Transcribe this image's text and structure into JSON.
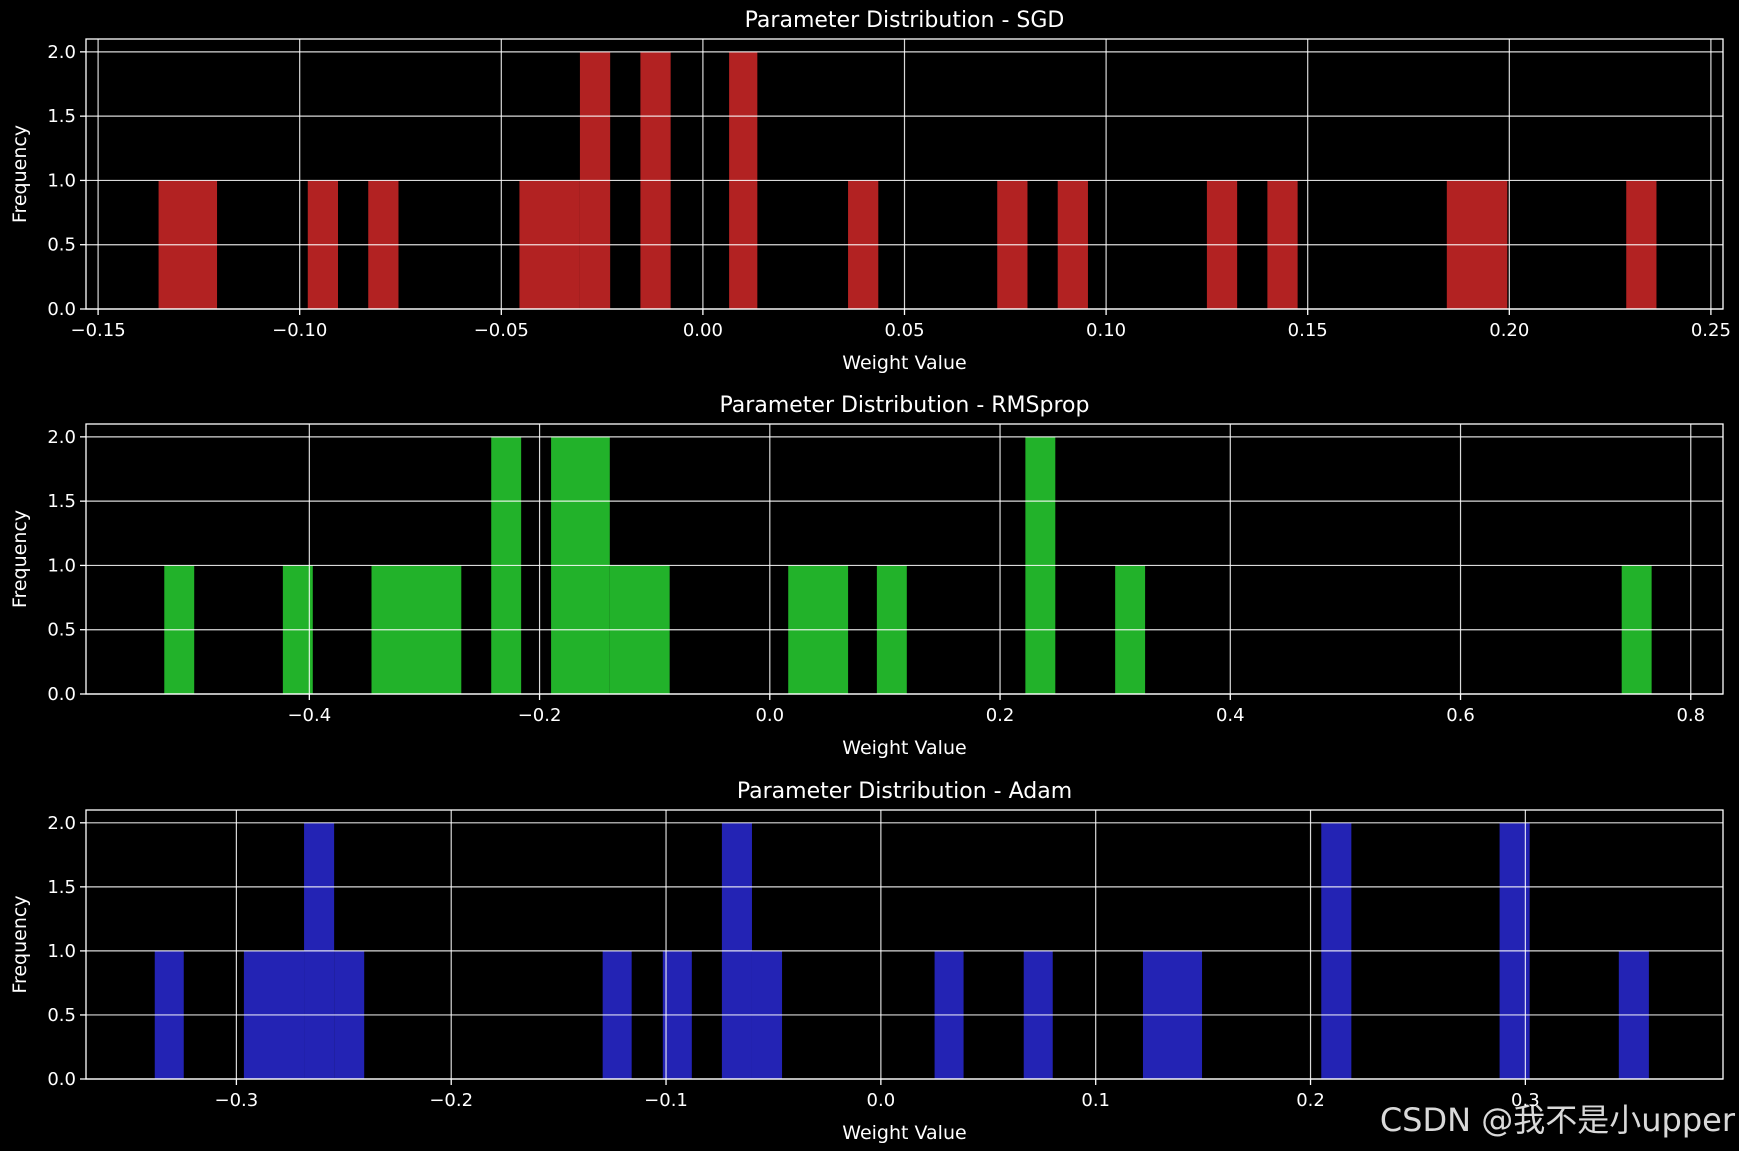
{
  "watermark": "CSDN @我不是小upper",
  "chart_data": [
    {
      "type": "bar",
      "title": "Parameter Distribution - SGD",
      "xlabel": "Weight Value",
      "ylabel": "Frequency",
      "color": "#b22222",
      "xlim": [
        -0.153,
        0.253
      ],
      "ylim": [
        0,
        2.1
      ],
      "grid": true,
      "xticks": [
        -0.15,
        -0.1,
        -0.05,
        0.0,
        0.05,
        0.1,
        0.15,
        0.2,
        0.25
      ],
      "xtick_labels": [
        "−0.15",
        "−0.10",
        "−0.05",
        "0.00",
        "0.05",
        "0.10",
        "0.15",
        "0.20",
        "0.25"
      ],
      "yticks": [
        0.0,
        0.5,
        1.0,
        1.5,
        2.0
      ],
      "ytick_labels": [
        "0.0",
        "0.5",
        "1.0",
        "1.5",
        "2.0"
      ],
      "bins": [
        {
          "x0": -0.135,
          "x1": -0.1205,
          "count": 1
        },
        {
          "x0": -0.098,
          "x1": -0.0905,
          "count": 1
        },
        {
          "x0": -0.083,
          "x1": -0.0755,
          "count": 1
        },
        {
          "x0": -0.0455,
          "x1": -0.0305,
          "count": 1
        },
        {
          "x0": -0.0305,
          "x1": -0.023,
          "count": 2
        },
        {
          "x0": -0.0155,
          "x1": -0.008,
          "count": 2
        },
        {
          "x0": 0.0065,
          "x1": 0.0135,
          "count": 2
        },
        {
          "x0": 0.036,
          "x1": 0.0435,
          "count": 1
        },
        {
          "x0": 0.073,
          "x1": 0.0805,
          "count": 1
        },
        {
          "x0": 0.088,
          "x1": 0.0955,
          "count": 1
        },
        {
          "x0": 0.125,
          "x1": 0.1325,
          "count": 1
        },
        {
          "x0": 0.14,
          "x1": 0.1475,
          "count": 1
        },
        {
          "x0": 0.1845,
          "x1": 0.1995,
          "count": 1
        },
        {
          "x0": 0.229,
          "x1": 0.2365,
          "count": 1
        }
      ]
    },
    {
      "type": "bar",
      "title": "Parameter Distribution - RMSprop",
      "xlabel": "Weight Value",
      "ylabel": "Frequency",
      "color": "#22b22a",
      "xlim": [
        -0.594,
        0.828
      ],
      "ylim": [
        0,
        2.1
      ],
      "grid": true,
      "xticks": [
        -0.4,
        -0.2,
        0.0,
        0.2,
        0.4,
        0.6,
        0.8
      ],
      "xtick_labels": [
        "−0.4",
        "−0.2",
        "0.0",
        "0.2",
        "0.4",
        "0.6",
        "0.8"
      ],
      "yticks": [
        0.0,
        0.5,
        1.0,
        1.5,
        2.0
      ],
      "ytick_labels": [
        "0.0",
        "0.5",
        "1.0",
        "1.5",
        "2.0"
      ],
      "bins": [
        {
          "x0": -0.526,
          "x1": -0.5,
          "count": 1
        },
        {
          "x0": -0.423,
          "x1": -0.397,
          "count": 1
        },
        {
          "x0": -0.346,
          "x1": -0.268,
          "count": 1
        },
        {
          "x0": -0.242,
          "x1": -0.216,
          "count": 2
        },
        {
          "x0": -0.19,
          "x1": -0.139,
          "count": 2
        },
        {
          "x0": -0.139,
          "x1": -0.087,
          "count": 1
        },
        {
          "x0": 0.016,
          "x1": 0.068,
          "count": 1
        },
        {
          "x0": 0.093,
          "x1": 0.119,
          "count": 1
        },
        {
          "x0": 0.222,
          "x1": 0.248,
          "count": 2
        },
        {
          "x0": 0.3,
          "x1": 0.326,
          "count": 1
        },
        {
          "x0": 0.74,
          "x1": 0.766,
          "count": 1
        }
      ]
    },
    {
      "type": "bar",
      "title": "Parameter Distribution - Adam",
      "xlabel": "Weight Value",
      "ylabel": "Frequency",
      "color": "#2323b4",
      "xlim": [
        -0.37,
        0.392
      ],
      "ylim": [
        0,
        2.1
      ],
      "grid": true,
      "xticks": [
        -0.3,
        -0.2,
        -0.1,
        0.0,
        0.1,
        0.2,
        0.3
      ],
      "xtick_labels": [
        "−0.3",
        "−0.2",
        "−0.1",
        "0.0",
        "0.1",
        "0.2",
        "0.3"
      ],
      "yticks": [
        0.0,
        0.5,
        1.0,
        1.5,
        2.0
      ],
      "ytick_labels": [
        "0.0",
        "0.5",
        "1.0",
        "1.5",
        "2.0"
      ],
      "bins": [
        {
          "x0": -0.338,
          "x1": -0.3245,
          "count": 1
        },
        {
          "x0": -0.2965,
          "x1": -0.2685,
          "count": 1
        },
        {
          "x0": -0.2685,
          "x1": -0.2545,
          "count": 2
        },
        {
          "x0": -0.2545,
          "x1": -0.2405,
          "count": 1
        },
        {
          "x0": -0.1295,
          "x1": -0.116,
          "count": 1
        },
        {
          "x0": -0.1015,
          "x1": -0.088,
          "count": 1
        },
        {
          "x0": -0.074,
          "x1": -0.06,
          "count": 2
        },
        {
          "x0": -0.06,
          "x1": -0.046,
          "count": 1
        },
        {
          "x0": 0.025,
          "x1": 0.0385,
          "count": 1
        },
        {
          "x0": 0.0665,
          "x1": 0.08,
          "count": 1
        },
        {
          "x0": 0.122,
          "x1": 0.1495,
          "count": 1
        },
        {
          "x0": 0.205,
          "x1": 0.219,
          "count": 2
        },
        {
          "x0": 0.288,
          "x1": 0.302,
          "count": 2
        },
        {
          "x0": 0.3435,
          "x1": 0.3575,
          "count": 1
        }
      ]
    }
  ]
}
